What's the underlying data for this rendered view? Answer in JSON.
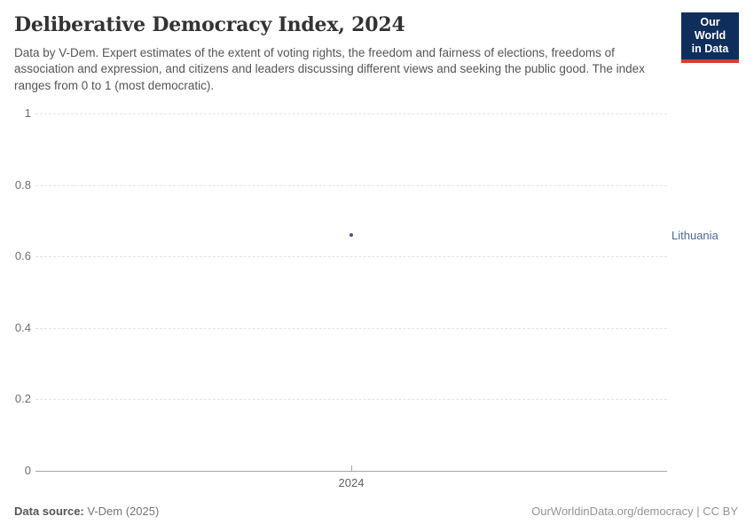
{
  "header": {
    "title": "Deliberative Democracy Index, 2024",
    "subtitle": "Data by V-Dem. Expert estimates of the extent of voting rights, the freedom and fairness of elections, freedoms of association and expression, and citizens and leaders discussing different views and seeking the public good. The index ranges from 0 to 1 (most democratic).",
    "logo": {
      "line1": "Our World",
      "line2": "in Data",
      "bg_color": "#0f2e5c",
      "bar_color": "#d73c34"
    }
  },
  "chart_data": {
    "type": "scatter",
    "title": "Deliberative Democracy Index, 2024",
    "x": [
      2024
    ],
    "series": [
      {
        "name": "Lithuania",
        "values": [
          0.66
        ],
        "color": "#4c6a9c",
        "point_color": "#3e5896"
      }
    ],
    "xticks": [
      "2024"
    ],
    "yticks": [
      "0",
      "0.2",
      "0.4",
      "0.6",
      "0.8",
      "1"
    ],
    "ytick_values": [
      0,
      0.2,
      0.4,
      0.6,
      0.8,
      1
    ],
    "ylim": [
      0,
      1
    ],
    "grid": "horizontal-dashed",
    "legend_position": "entity-label-right"
  },
  "footer": {
    "source_label": "Data source:",
    "source_value": " V-Dem (2025)",
    "attribution": "OurWorldinData.org/democracy | CC BY"
  },
  "colors": {
    "grid": "#e2e2e2",
    "axis": "#a5a5a5",
    "title_text": "#333333",
    "subtitle_text": "#555555",
    "tick_text": "#6e6e6e"
  }
}
